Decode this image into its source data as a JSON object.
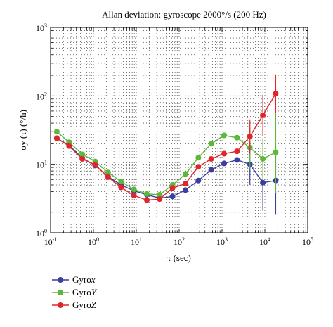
{
  "chart_data": {
    "type": "line",
    "title": "Allan deviation: gyroscope 2000°/s (200 Hz)",
    "xlabel": "τ (sec)",
    "ylabel": "σy (τ) (°/h)",
    "xscale": "log",
    "yscale": "log",
    "xlim": [
      0.1,
      100000
    ],
    "ylim": [
      1,
      1000
    ],
    "x_tick_labels": [
      "10-1",
      "100",
      "101",
      "102",
      "103",
      "104",
      "105"
    ],
    "y_tick_labels": [
      "100",
      "101",
      "102",
      "103"
    ],
    "grid": true,
    "legend_placement": "below-left",
    "error_bars": true,
    "x": [
      0.14,
      0.27,
      0.55,
      1.1,
      2.2,
      4.4,
      8.8,
      17.6,
      35,
      70,
      140,
      280,
      560,
      1120,
      2240,
      4480,
      8960,
      17920
    ],
    "series": [
      {
        "name": "Gyrox",
        "label_main": "Gyro",
        "label_axis": "x",
        "color": "#3a3f9e",
        "values": [
          24,
          19,
          12.3,
          9.6,
          6.6,
          5,
          4.1,
          3.6,
          3.2,
          3.4,
          4.2,
          5.8,
          8.3,
          10.3,
          11.6,
          10,
          5.4,
          5.8
        ],
        "error": [
          0,
          0,
          0,
          0,
          0,
          0,
          0,
          0,
          0,
          0,
          0,
          0,
          0,
          0,
          0,
          0.3,
          0.4,
          0.5
        ]
      },
      {
        "name": "GyroY",
        "label_main": "Gyro",
        "label_axis": "Y",
        "color": "#5cb83a",
        "values": [
          30,
          21,
          14,
          11,
          7.6,
          5.6,
          4.3,
          3.7,
          3.6,
          5,
          7.2,
          12.5,
          20,
          26.5,
          24.5,
          17.5,
          12,
          15
        ],
        "error": [
          0,
          0,
          0,
          0,
          0,
          0,
          0,
          0,
          0,
          0,
          0,
          0,
          0,
          0,
          0,
          0.3,
          0.3,
          0.6
        ]
      },
      {
        "name": "GyroZ",
        "label_main": "Gyro",
        "label_axis": "Z",
        "color": "#e0252b",
        "values": [
          24,
          18.5,
          12,
          9.8,
          6.5,
          4.6,
          3.5,
          3,
          3.1,
          4.5,
          5.2,
          9.2,
          12,
          14.3,
          15.5,
          25.5,
          52,
          108
        ],
        "error": [
          0,
          0,
          0,
          0,
          0,
          0,
          0,
          0,
          0,
          0,
          0,
          0,
          0,
          0,
          0,
          0.25,
          0.3,
          0.28
        ]
      }
    ]
  }
}
